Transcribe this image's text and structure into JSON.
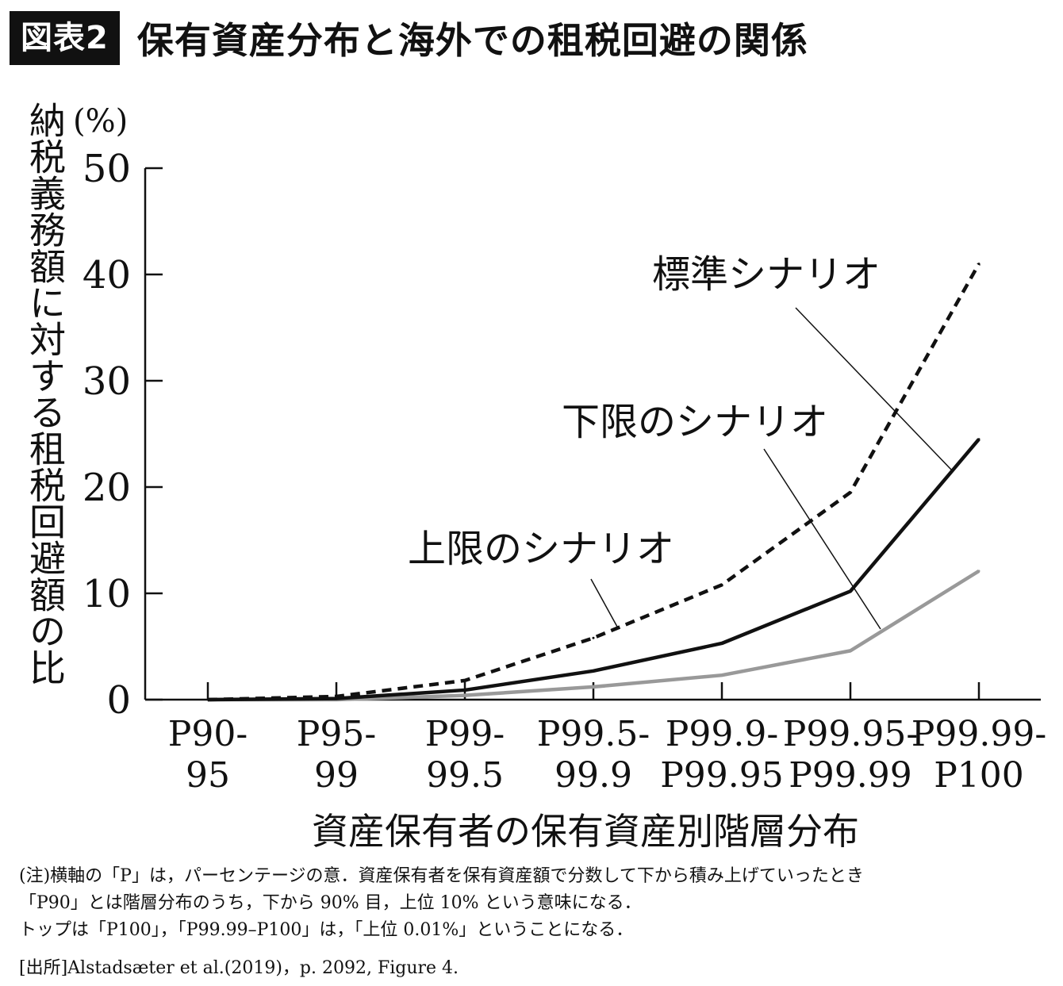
{
  "figure": {
    "badge": "図表2",
    "title": "保有資産分布と海外での租税回避の関係"
  },
  "chart_data": {
    "type": "line",
    "ylabel": "納税義務額に対する租税回避額の比",
    "yunit": "(%)",
    "xlabel": "資産保有者の保有資産別階層分布",
    "ylim": [
      0,
      50
    ],
    "yticks": [
      "0",
      "10",
      "20",
      "30",
      "40",
      "50"
    ],
    "categories": [
      [
        "P90-",
        "95"
      ],
      [
        "P95-",
        "99"
      ],
      [
        "P99-",
        "99.5"
      ],
      [
        "P99.5-",
        "99.9"
      ],
      [
        "P99.9-",
        "P99.95"
      ],
      [
        "P99.95-",
        "P99.99"
      ],
      [
        "P99.99-",
        "P100"
      ]
    ],
    "series": [
      {
        "name": "上限のシナリオ",
        "values": [
          0.0,
          0.3,
          1.8,
          5.8,
          10.8,
          19.5,
          41.0
        ],
        "color": "#111111",
        "style": "dashed"
      },
      {
        "name": "標準シナリオ",
        "values": [
          0.0,
          0.1,
          0.9,
          2.7,
          5.3,
          10.2,
          24.5
        ],
        "color": "#111111",
        "style": "solid"
      },
      {
        "name": "下限のシナリオ",
        "values": [
          0.0,
          0.0,
          0.4,
          1.2,
          2.3,
          4.6,
          12.1
        ],
        "color": "#999999",
        "style": "solid"
      }
    ]
  },
  "notes": [
    "(注)横軸の「P」は，パーセンテージの意．資産保有者を保有資産額で分数して下から積み上げていったとき",
    "「P90」とは階層分布のうち，下から 90% 目，上位 10% という意味になる．",
    "トップは「P100」，「P99.99–P100」は，「上位 0.01%」ということになる．"
  ],
  "source": "[出所]Alstadsæter et al.(2019)，p. 2092, Figure 4."
}
